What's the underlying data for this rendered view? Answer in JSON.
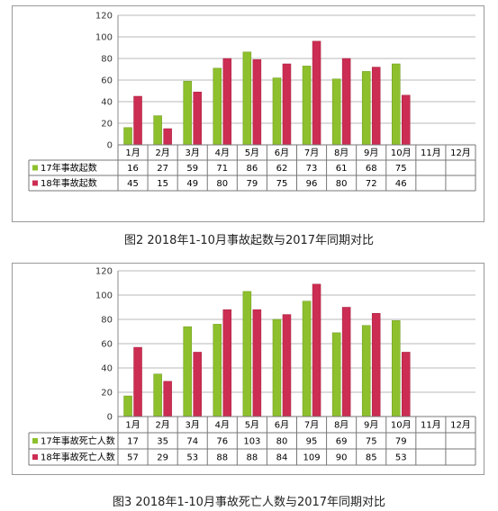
{
  "chart_data": [
    {
      "type": "bar",
      "title": "",
      "categories": [
        "1月",
        "2月",
        "3月",
        "4月",
        "5月",
        "6月",
        "7月",
        "8月",
        "9月",
        "10月",
        "11月",
        "12月"
      ],
      "series": [
        {
          "name": "17年事故起数",
          "values": [
            16,
            27,
            59,
            71,
            86,
            62,
            73,
            61,
            68,
            75,
            null,
            null
          ]
        },
        {
          "name": "18年事故起数",
          "values": [
            45,
            15,
            49,
            80,
            79,
            75,
            96,
            80,
            72,
            46,
            null,
            null
          ]
        }
      ],
      "ylim": [
        0,
        120
      ],
      "yticks": [
        0,
        20,
        40,
        60,
        80,
        100,
        120
      ],
      "grid": true,
      "legend": "data-table"
    },
    {
      "type": "bar",
      "title": "",
      "categories": [
        "1月",
        "2月",
        "3月",
        "4月",
        "5月",
        "6月",
        "7月",
        "8月",
        "9月",
        "10月",
        "11月",
        "12月"
      ],
      "series": [
        {
          "name": "17年事故死亡人数",
          "values": [
            17,
            35,
            74,
            76,
            103,
            80,
            95,
            69,
            75,
            79,
            null,
            null
          ]
        },
        {
          "name": "18年事故死亡人数",
          "values": [
            57,
            29,
            53,
            88,
            88,
            84,
            109,
            90,
            85,
            53,
            null,
            null
          ]
        }
      ],
      "ylim": [
        0,
        120
      ],
      "yticks": [
        0,
        20,
        40,
        60,
        80,
        100,
        120
      ],
      "grid": true,
      "legend": "data-table"
    }
  ],
  "captions": [
    "图2   2018年1-10月事故起数与2017年同期对比",
    "图3  2018年1-10月事故死亡人数与2017年同期对比"
  ],
  "colors": {
    "series_a": "#8dc02c",
    "series_b": "#cc2d52",
    "grid": "#b8b8b8",
    "border": "#999999"
  }
}
